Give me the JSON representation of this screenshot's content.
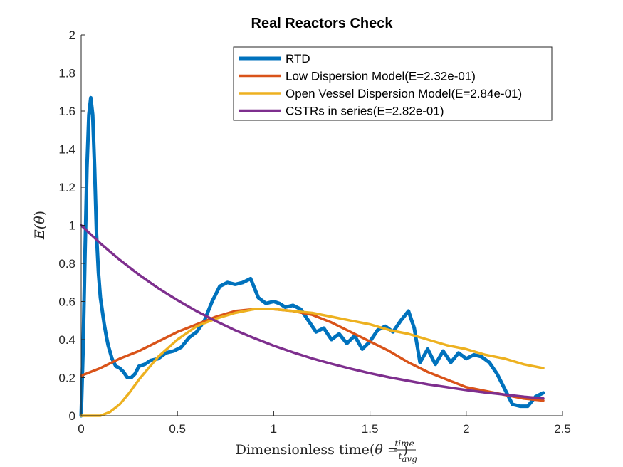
{
  "chart_data": {
    "type": "line",
    "title": "Real Reactors Check",
    "xlabel": {
      "prefix": "Dimensionless time(",
      "theta": "θ",
      "eq": " = ",
      "num": "time",
      "den": "t",
      "den_sub": "avg",
      "suffix": ")"
    },
    "ylabel": {
      "prefix": "E(",
      "theta": "θ",
      "suffix": ")"
    },
    "xlim": [
      0,
      2.5
    ],
    "ylim": [
      0,
      2
    ],
    "xticks": [
      0,
      0.5,
      1,
      1.5,
      2,
      2.5
    ],
    "xtick_labels": [
      "0",
      "0.5",
      "1",
      "1.5",
      "2",
      "2.5"
    ],
    "yticks": [
      0,
      0.2,
      0.4,
      0.6,
      0.8,
      1,
      1.2,
      1.4,
      1.6,
      1.8,
      2
    ],
    "ytick_labels": [
      "0",
      "0.2",
      "0.4",
      "0.6",
      "0.8",
      "1",
      "1.2",
      "1.4",
      "1.6",
      "1.8",
      "2"
    ],
    "grid": false,
    "legend_position": "top-right",
    "series": [
      {
        "name": "RTD",
        "color": "#0072BD",
        "x": [
          0,
          0.01,
          0.02,
          0.03,
          0.04,
          0.05,
          0.06,
          0.07,
          0.08,
          0.09,
          0.1,
          0.11,
          0.12,
          0.13,
          0.14,
          0.16,
          0.18,
          0.2,
          0.22,
          0.24,
          0.26,
          0.28,
          0.3,
          0.33,
          0.36,
          0.4,
          0.44,
          0.48,
          0.52,
          0.56,
          0.6,
          0.64,
          0.68,
          0.72,
          0.76,
          0.8,
          0.84,
          0.88,
          0.92,
          0.96,
          1.0,
          1.03,
          1.06,
          1.1,
          1.14,
          1.18,
          1.22,
          1.26,
          1.3,
          1.34,
          1.38,
          1.42,
          1.46,
          1.5,
          1.54,
          1.58,
          1.62,
          1.66,
          1.7,
          1.73,
          1.76,
          1.8,
          1.84,
          1.88,
          1.92,
          1.96,
          2.0,
          2.04,
          2.08,
          2.12,
          2.16,
          2.2,
          2.24,
          2.28,
          2.32,
          2.36,
          2.4
        ],
        "y": [
          0.0,
          0.35,
          0.85,
          1.3,
          1.58,
          1.67,
          1.58,
          1.3,
          0.95,
          0.75,
          0.62,
          0.55,
          0.48,
          0.42,
          0.37,
          0.3,
          0.26,
          0.25,
          0.23,
          0.2,
          0.2,
          0.22,
          0.26,
          0.27,
          0.29,
          0.3,
          0.33,
          0.34,
          0.36,
          0.41,
          0.44,
          0.5,
          0.6,
          0.68,
          0.7,
          0.69,
          0.7,
          0.72,
          0.62,
          0.59,
          0.6,
          0.59,
          0.57,
          0.58,
          0.56,
          0.5,
          0.44,
          0.46,
          0.4,
          0.43,
          0.38,
          0.42,
          0.35,
          0.39,
          0.45,
          0.47,
          0.44,
          0.5,
          0.55,
          0.46,
          0.28,
          0.35,
          0.27,
          0.34,
          0.28,
          0.33,
          0.3,
          0.32,
          0.31,
          0.28,
          0.22,
          0.14,
          0.06,
          0.05,
          0.05,
          0.1,
          0.12
        ]
      },
      {
        "name": "Low Dispersion Model(E=2.32e-01)",
        "color": "#D95319",
        "x": [
          0,
          0.1,
          0.2,
          0.3,
          0.4,
          0.5,
          0.6,
          0.7,
          0.8,
          0.9,
          1.0,
          1.1,
          1.2,
          1.3,
          1.4,
          1.5,
          1.6,
          1.7,
          1.8,
          1.9,
          2.0,
          2.1,
          2.2,
          2.3,
          2.4
        ],
        "y": [
          0.21,
          0.25,
          0.3,
          0.34,
          0.39,
          0.44,
          0.48,
          0.52,
          0.55,
          0.56,
          0.56,
          0.55,
          0.53,
          0.49,
          0.44,
          0.39,
          0.34,
          0.28,
          0.23,
          0.19,
          0.15,
          0.13,
          0.11,
          0.09,
          0.08
        ]
      },
      {
        "name": "Open Vessel Dispersion Model(E=2.84e-01)",
        "color": "#EDB120",
        "x": [
          0,
          0.05,
          0.1,
          0.15,
          0.2,
          0.25,
          0.3,
          0.35,
          0.4,
          0.5,
          0.6,
          0.7,
          0.8,
          0.9,
          1.0,
          1.1,
          1.2,
          1.3,
          1.4,
          1.5,
          1.6,
          1.7,
          1.8,
          1.9,
          2.0,
          2.1,
          2.2,
          2.3,
          2.4
        ],
        "y": [
          0.0,
          0.0,
          0.0,
          0.02,
          0.06,
          0.12,
          0.19,
          0.25,
          0.31,
          0.4,
          0.47,
          0.51,
          0.54,
          0.56,
          0.56,
          0.55,
          0.54,
          0.52,
          0.5,
          0.48,
          0.45,
          0.43,
          0.4,
          0.37,
          0.35,
          0.32,
          0.3,
          0.27,
          0.25
        ]
      },
      {
        "name": "CSTRs in series(E=2.82e-01)",
        "color": "#7E2F8E",
        "x": [
          0,
          0.1,
          0.2,
          0.3,
          0.4,
          0.5,
          0.6,
          0.7,
          0.8,
          0.9,
          1.0,
          1.1,
          1.2,
          1.3,
          1.4,
          1.5,
          1.6,
          1.7,
          1.8,
          1.9,
          2.0,
          2.1,
          2.2,
          2.3,
          2.4
        ],
        "y": [
          1.0,
          0.905,
          0.819,
          0.741,
          0.67,
          0.607,
          0.549,
          0.497,
          0.449,
          0.407,
          0.368,
          0.333,
          0.301,
          0.273,
          0.247,
          0.223,
          0.202,
          0.183,
          0.165,
          0.15,
          0.135,
          0.122,
          0.111,
          0.1,
          0.091
        ]
      }
    ]
  }
}
